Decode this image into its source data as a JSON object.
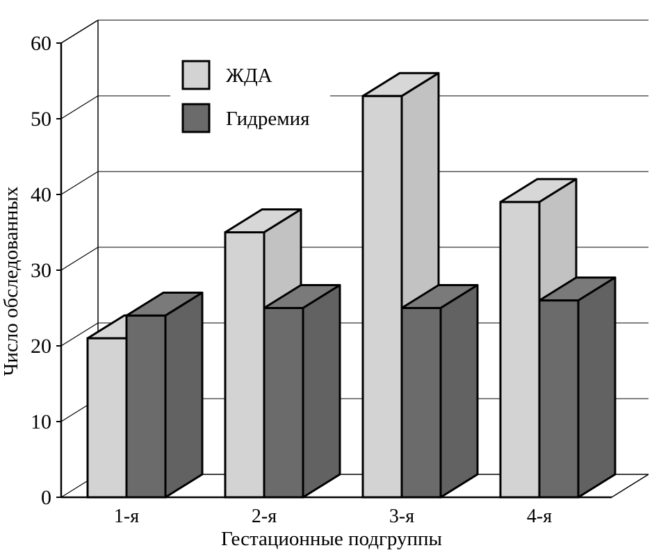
{
  "chart_data": {
    "type": "bar",
    "style": "3d-clustered",
    "categories": [
      "1-я",
      "2-я",
      "3-я",
      "4-я"
    ],
    "series": [
      {
        "name": "ЖДА",
        "values": [
          21,
          35,
          53,
          39
        ],
        "color": "#d3d3d3"
      },
      {
        "name": "Гидремия",
        "values": [
          24,
          25,
          25,
          26
        ],
        "color": "#6b6b6b"
      }
    ],
    "title": "",
    "xlabel": "Гестационные подгруппы",
    "ylabel": "Число обследованных",
    "ylim": [
      0,
      60
    ],
    "yticks": [
      "0",
      "10",
      "20",
      "30",
      "40",
      "50",
      "60"
    ],
    "grid": true,
    "legend": "top-left"
  }
}
